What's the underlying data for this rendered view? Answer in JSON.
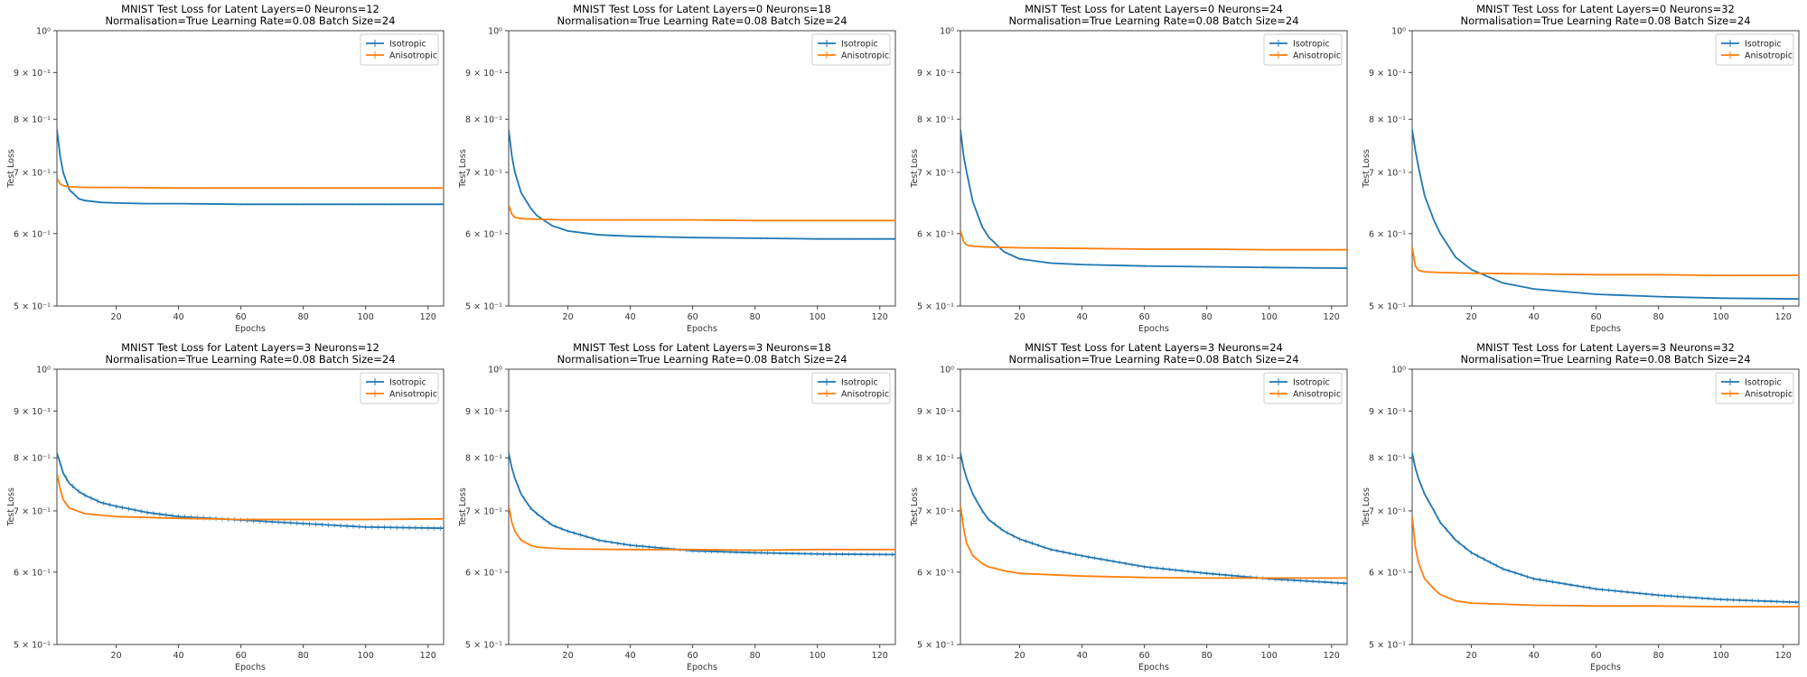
{
  "colors": {
    "isotropic": "#1f77b4",
    "anisotropic": "#ff7f0e",
    "axis": "#444444"
  },
  "chart_data": [
    {
      "type": "line",
      "title_line1": "MNIST Test Loss for Latent Layers=0 Neurons=12",
      "title_line2": "Normalisation=True Learning Rate=0.08 Batch Size=24",
      "xlabel": "Epochs",
      "ylabel": "Test Loss",
      "yscale": "log",
      "xlim": [
        1,
        125
      ],
      "ylim": [
        0.5,
        1.0
      ],
      "xticks": [
        20,
        40,
        60,
        80,
        100,
        120
      ],
      "yticks": [
        {
          "v": 0.5,
          "label": "5 × 10⁻¹"
        },
        {
          "v": 0.6,
          "label": "6 × 10⁻¹"
        },
        {
          "v": 0.7,
          "label": "7 × 10⁻¹"
        },
        {
          "v": 0.8,
          "label": "8 × 10⁻¹"
        },
        {
          "v": 0.9,
          "label": "9 × 10⁻¹"
        },
        {
          "v": 1.0,
          "label": "10⁰"
        }
      ],
      "legend": "top-right",
      "series": [
        {
          "name": "Isotropic",
          "x": [
            1,
            2,
            3,
            5,
            8,
            10,
            15,
            20,
            30,
            40,
            60,
            80,
            100,
            125
          ],
          "y": [
            0.78,
            0.73,
            0.7,
            0.67,
            0.655,
            0.652,
            0.649,
            0.648,
            0.647,
            0.647,
            0.646,
            0.646,
            0.646,
            0.646
          ],
          "err": 0.002
        },
        {
          "name": "Anisotropic",
          "x": [
            1,
            2,
            3,
            5,
            10,
            20,
            40,
            60,
            80,
            100,
            125
          ],
          "y": [
            0.69,
            0.68,
            0.677,
            0.675,
            0.674,
            0.674,
            0.673,
            0.673,
            0.673,
            0.673,
            0.673
          ],
          "err": 0.002
        }
      ]
    },
    {
      "type": "line",
      "title_line1": "MNIST Test Loss for Latent Layers=0 Neurons=18",
      "title_line2": "Normalisation=True Learning Rate=0.08 Batch Size=24",
      "xlabel": "Epochs",
      "ylabel": "Test Loss",
      "yscale": "log",
      "xlim": [
        1,
        125
      ],
      "ylim": [
        0.5,
        1.0
      ],
      "xticks": [
        20,
        40,
        60,
        80,
        100,
        120
      ],
      "yticks": [
        {
          "v": 0.5,
          "label": "5 × 10⁻¹"
        },
        {
          "v": 0.6,
          "label": "6 × 10⁻¹"
        },
        {
          "v": 0.7,
          "label": "7 × 10⁻¹"
        },
        {
          "v": 0.8,
          "label": "8 × 10⁻¹"
        },
        {
          "v": 0.9,
          "label": "9 × 10⁻¹"
        },
        {
          "v": 1.0,
          "label": "10⁰"
        }
      ],
      "legend": "top-right",
      "series": [
        {
          "name": "Isotropic",
          "x": [
            1,
            2,
            3,
            5,
            8,
            10,
            15,
            20,
            30,
            40,
            60,
            80,
            100,
            125
          ],
          "y": [
            0.78,
            0.73,
            0.7,
            0.665,
            0.64,
            0.628,
            0.612,
            0.604,
            0.598,
            0.596,
            0.594,
            0.593,
            0.592,
            0.592
          ],
          "err": 0.002
        },
        {
          "name": "Anisotropic",
          "x": [
            1,
            2,
            3,
            5,
            10,
            20,
            40,
            60,
            80,
            100,
            125
          ],
          "y": [
            0.645,
            0.63,
            0.625,
            0.623,
            0.622,
            0.621,
            0.621,
            0.621,
            0.62,
            0.62,
            0.62
          ],
          "err": 0.002
        }
      ]
    },
    {
      "type": "line",
      "title_line1": "MNIST Test Loss for Latent Layers=0 Neurons=24",
      "title_line2": "Normalisation=True Learning Rate=0.08 Batch Size=24",
      "xlabel": "Epochs",
      "ylabel": "Test Loss",
      "yscale": "log",
      "xlim": [
        1,
        125
      ],
      "ylim": [
        0.5,
        1.0
      ],
      "xticks": [
        20,
        40,
        60,
        80,
        100,
        120
      ],
      "yticks": [
        {
          "v": 0.5,
          "label": "5 × 10⁻¹"
        },
        {
          "v": 0.6,
          "label": "6 × 10⁻¹"
        },
        {
          "v": 0.7,
          "label": "7 × 10⁻¹"
        },
        {
          "v": 0.8,
          "label": "8 × 10⁻¹"
        },
        {
          "v": 0.9,
          "label": "9 × 10⁻¹"
        },
        {
          "v": 1.0,
          "label": "10⁰"
        }
      ],
      "legend": "top-right",
      "series": [
        {
          "name": "Isotropic",
          "x": [
            1,
            2,
            3,
            5,
            8,
            10,
            15,
            20,
            30,
            40,
            60,
            80,
            100,
            125
          ],
          "y": [
            0.78,
            0.73,
            0.7,
            0.65,
            0.61,
            0.595,
            0.573,
            0.563,
            0.557,
            0.555,
            0.553,
            0.552,
            0.551,
            0.55
          ],
          "err": 0.002
        },
        {
          "name": "Anisotropic",
          "x": [
            1,
            2,
            3,
            5,
            10,
            20,
            40,
            60,
            80,
            100,
            125
          ],
          "y": [
            0.605,
            0.588,
            0.583,
            0.581,
            0.58,
            0.579,
            0.578,
            0.577,
            0.577,
            0.576,
            0.576
          ],
          "err": 0.002
        }
      ]
    },
    {
      "type": "line",
      "title_line1": "MNIST Test Loss for Latent Layers=0 Neurons=32",
      "title_line2": "Normalisation=True Learning Rate=0.08 Batch Size=24",
      "xlabel": "Epochs",
      "ylabel": "Test Loss",
      "yscale": "log",
      "xlim": [
        1,
        125
      ],
      "ylim": [
        0.5,
        1.0
      ],
      "xticks": [
        20,
        40,
        60,
        80,
        100,
        120
      ],
      "yticks": [
        {
          "v": 0.5,
          "label": "5 × 10⁻¹"
        },
        {
          "v": 0.6,
          "label": "6 × 10⁻¹"
        },
        {
          "v": 0.7,
          "label": "7 × 10⁻¹"
        },
        {
          "v": 0.8,
          "label": "8 × 10⁻¹"
        },
        {
          "v": 0.9,
          "label": "9 × 10⁻¹"
        },
        {
          "v": 1.0,
          "label": "10⁰"
        }
      ],
      "legend": "top-right",
      "series": [
        {
          "name": "Isotropic",
          "x": [
            1,
            2,
            3,
            5,
            8,
            10,
            15,
            20,
            30,
            40,
            60,
            80,
            100,
            125
          ],
          "y": [
            0.78,
            0.74,
            0.71,
            0.66,
            0.62,
            0.6,
            0.565,
            0.548,
            0.53,
            0.522,
            0.515,
            0.512,
            0.51,
            0.509
          ],
          "err": 0.002
        },
        {
          "name": "Anisotropic",
          "x": [
            1,
            2,
            3,
            5,
            10,
            20,
            40,
            60,
            80,
            100,
            125
          ],
          "y": [
            0.58,
            0.553,
            0.547,
            0.545,
            0.544,
            0.543,
            0.542,
            0.541,
            0.541,
            0.54,
            0.54
          ],
          "err": 0.002
        }
      ]
    },
    {
      "type": "line",
      "title_line1": "MNIST Test Loss for Latent Layers=3 Neurons=12",
      "title_line2": "Normalisation=True Learning Rate=0.08 Batch Size=24",
      "xlabel": "Epochs",
      "ylabel": "Test Loss",
      "yscale": "log",
      "xlim": [
        1,
        125
      ],
      "ylim": [
        0.5,
        1.0
      ],
      "xticks": [
        20,
        40,
        60,
        80,
        100,
        120
      ],
      "yticks": [
        {
          "v": 0.5,
          "label": "5 × 10⁻¹"
        },
        {
          "v": 0.6,
          "label": "6 × 10⁻¹"
        },
        {
          "v": 0.7,
          "label": "7 × 10⁻¹"
        },
        {
          "v": 0.8,
          "label": "8 × 10⁻¹"
        },
        {
          "v": 0.9,
          "label": "9 × 10⁻¹"
        },
        {
          "v": 1.0,
          "label": "10⁰"
        }
      ],
      "legend": "top-right",
      "series": [
        {
          "name": "Isotropic",
          "x": [
            1,
            2,
            3,
            5,
            8,
            10,
            15,
            20,
            30,
            40,
            60,
            80,
            100,
            125
          ],
          "y": [
            0.81,
            0.79,
            0.77,
            0.75,
            0.735,
            0.728,
            0.715,
            0.708,
            0.697,
            0.69,
            0.684,
            0.678,
            0.672,
            0.67
          ],
          "err": 0.006
        },
        {
          "name": "Anisotropic",
          "x": [
            1,
            2,
            3,
            5,
            10,
            20,
            40,
            60,
            80,
            100,
            125
          ],
          "y": [
            0.77,
            0.74,
            0.72,
            0.705,
            0.695,
            0.69,
            0.687,
            0.685,
            0.685,
            0.685,
            0.686
          ],
          "err": 0.002
        }
      ]
    },
    {
      "type": "line",
      "title_line1": "MNIST Test Loss for Latent Layers=3 Neurons=18",
      "title_line2": "Normalisation=True Learning Rate=0.08 Batch Size=24",
      "xlabel": "Epochs",
      "ylabel": "Test Loss",
      "yscale": "log",
      "xlim": [
        1,
        125
      ],
      "ylim": [
        0.5,
        1.0
      ],
      "xticks": [
        20,
        40,
        60,
        80,
        100,
        120
      ],
      "yticks": [
        {
          "v": 0.5,
          "label": "5 × 10⁻¹"
        },
        {
          "v": 0.6,
          "label": "6 × 10⁻¹"
        },
        {
          "v": 0.7,
          "label": "7 × 10⁻¹"
        },
        {
          "v": 0.8,
          "label": "8 × 10⁻¹"
        },
        {
          "v": 0.9,
          "label": "9 × 10⁻¹"
        },
        {
          "v": 1.0,
          "label": "10⁰"
        }
      ],
      "legend": "top-right",
      "series": [
        {
          "name": "Isotropic",
          "x": [
            1,
            2,
            3,
            5,
            8,
            10,
            15,
            20,
            30,
            40,
            60,
            80,
            100,
            125
          ],
          "y": [
            0.81,
            0.78,
            0.76,
            0.73,
            0.705,
            0.695,
            0.675,
            0.665,
            0.65,
            0.642,
            0.633,
            0.63,
            0.628,
            0.627
          ],
          "err": 0.005
        },
        {
          "name": "Anisotropic",
          "x": [
            1,
            2,
            3,
            5,
            8,
            10,
            15,
            20,
            40,
            60,
            80,
            100,
            125
          ],
          "y": [
            0.71,
            0.68,
            0.665,
            0.65,
            0.642,
            0.639,
            0.637,
            0.636,
            0.635,
            0.635,
            0.634,
            0.635,
            0.635
          ],
          "err": 0.002
        }
      ]
    },
    {
      "type": "line",
      "title_line1": "MNIST Test Loss for Latent Layers=3 Neurons=24",
      "title_line2": "Normalisation=True Learning Rate=0.08 Batch Size=24",
      "xlabel": "Epochs",
      "ylabel": "Test Loss",
      "yscale": "log",
      "xlim": [
        1,
        125
      ],
      "ylim": [
        0.5,
        1.0
      ],
      "xticks": [
        20,
        40,
        60,
        80,
        100,
        120
      ],
      "yticks": [
        {
          "v": 0.5,
          "label": "5 × 10⁻¹"
        },
        {
          "v": 0.6,
          "label": "6 × 10⁻¹"
        },
        {
          "v": 0.7,
          "label": "7 × 10⁻¹"
        },
        {
          "v": 0.8,
          "label": "8 × 10⁻¹"
        },
        {
          "v": 0.9,
          "label": "9 × 10⁻¹"
        },
        {
          "v": 1.0,
          "label": "10⁰"
        }
      ],
      "legend": "top-right",
      "series": [
        {
          "name": "Isotropic",
          "x": [
            1,
            2,
            3,
            5,
            8,
            10,
            15,
            20,
            30,
            40,
            60,
            80,
            100,
            125
          ],
          "y": [
            0.81,
            0.78,
            0.76,
            0.73,
            0.7,
            0.685,
            0.665,
            0.652,
            0.635,
            0.625,
            0.608,
            0.598,
            0.59,
            0.583
          ],
          "err": 0.005
        },
        {
          "name": "Anisotropic",
          "x": [
            1,
            2,
            3,
            5,
            8,
            10,
            15,
            20,
            40,
            60,
            80,
            100,
            125
          ],
          "y": [
            0.71,
            0.67,
            0.645,
            0.625,
            0.613,
            0.608,
            0.602,
            0.598,
            0.594,
            0.592,
            0.591,
            0.591,
            0.591
          ],
          "err": 0.002
        }
      ]
    },
    {
      "type": "line",
      "title_line1": "MNIST Test Loss for Latent Layers=3 Neurons=32",
      "title_line2": "Normalisation=True Learning Rate=0.08 Batch Size=24",
      "xlabel": "Epochs",
      "ylabel": "Test Loss",
      "yscale": "log",
      "xlim": [
        1,
        125
      ],
      "ylim": [
        0.5,
        1.0
      ],
      "xticks": [
        20,
        40,
        60,
        80,
        100,
        120
      ],
      "yticks": [
        {
          "v": 0.5,
          "label": "5 × 10⁻¹"
        },
        {
          "v": 0.6,
          "label": "6 × 10⁻¹"
        },
        {
          "v": 0.7,
          "label": "7 × 10⁻¹"
        },
        {
          "v": 0.8,
          "label": "8 × 10⁻¹"
        },
        {
          "v": 0.9,
          "label": "9 × 10⁻¹"
        },
        {
          "v": 1.0,
          "label": "10⁰"
        }
      ],
      "legend": "top-right",
      "series": [
        {
          "name": "Isotropic",
          "x": [
            1,
            2,
            3,
            5,
            8,
            10,
            15,
            20,
            30,
            40,
            60,
            80,
            100,
            125
          ],
          "y": [
            0.81,
            0.78,
            0.76,
            0.73,
            0.7,
            0.68,
            0.65,
            0.63,
            0.605,
            0.59,
            0.575,
            0.566,
            0.56,
            0.556
          ],
          "err": 0.005
        },
        {
          "name": "Anisotropic",
          "x": [
            1,
            2,
            3,
            5,
            8,
            10,
            15,
            20,
            40,
            60,
            80,
            100,
            125
          ],
          "y": [
            0.69,
            0.64,
            0.615,
            0.59,
            0.575,
            0.567,
            0.558,
            0.555,
            0.552,
            0.551,
            0.551,
            0.55,
            0.55
          ],
          "err": 0.002
        }
      ]
    }
  ]
}
